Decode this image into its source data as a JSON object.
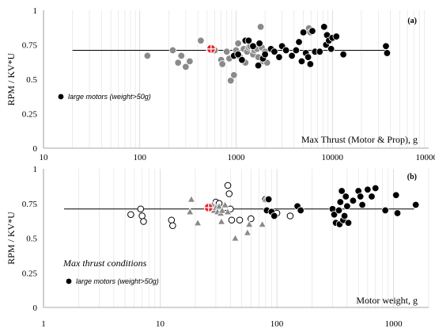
{
  "chart_data": [
    {
      "type": "scatter",
      "panel_label": "(a)",
      "xlabel": "Max Thrust (Motor & Prop), g",
      "ylabel": "RPM / KV*U",
      "xscale": "log",
      "xlim": [
        10,
        100000
      ],
      "ylim": [
        0,
        1
      ],
      "x_ticks": [
        "10",
        "100",
        "1000",
        "10000",
        "100000"
      ],
      "y_ticks": [
        "0",
        "0.25",
        "0.5",
        "0.75",
        "1"
      ],
      "grid": "vertical minor log gridlines",
      "legend_placement": "bottom-left",
      "reference_line": {
        "x": [
          20,
          38000
        ],
        "y": 0.71
      },
      "highlight_point": {
        "x": 550,
        "y": 0.72
      },
      "series": [
        {
          "name": "",
          "style": "gray",
          "points": [
            [
              120,
              0.67
            ],
            [
              220,
              0.71
            ],
            [
              250,
              0.62
            ],
            [
              270,
              0.67
            ],
            [
              300,
              0.59
            ],
            [
              330,
              0.63
            ],
            [
              430,
              0.78
            ],
            [
              530,
              0.72
            ],
            [
              600,
              0.71
            ],
            [
              700,
              0.64
            ],
            [
              720,
              0.61
            ],
            [
              800,
              0.7
            ],
            [
              850,
              0.65
            ],
            [
              880,
              0.49
            ],
            [
              950,
              0.53
            ],
            [
              1000,
              0.71
            ],
            [
              1050,
              0.76
            ],
            [
              1100,
              0.66
            ],
            [
              1200,
              0.72
            ],
            [
              1250,
              0.62
            ],
            [
              1300,
              0.7
            ],
            [
              1350,
              0.73
            ],
            [
              1400,
              0.74
            ],
            [
              1500,
              0.68
            ],
            [
              1550,
              0.71
            ],
            [
              1650,
              0.72
            ],
            [
              1700,
              0.66
            ],
            [
              1800,
              0.88
            ],
            [
              1850,
              0.73
            ],
            [
              1900,
              0.63
            ],
            [
              2000,
              0.7
            ],
            [
              2100,
              0.62
            ],
            [
              5700,
              0.87
            ],
            [
              5900,
              0.84
            ]
          ]
        },
        {
          "name": "large motors (weight>50g)",
          "style": "black",
          "points": [
            [
              950,
              0.67
            ],
            [
              1050,
              0.68
            ],
            [
              1150,
              0.64
            ],
            [
              1250,
              0.78
            ],
            [
              1350,
              0.78
            ],
            [
              1500,
              0.74
            ],
            [
              1700,
              0.6
            ],
            [
              1750,
              0.76
            ],
            [
              1900,
              0.65
            ],
            [
              2000,
              0.68
            ],
            [
              2300,
              0.72
            ],
            [
              2500,
              0.7
            ],
            [
              2800,
              0.66
            ],
            [
              3000,
              0.74
            ],
            [
              3300,
              0.71
            ],
            [
              3800,
              0.67
            ],
            [
              4200,
              0.71
            ],
            [
              4500,
              0.77
            ],
            [
              4800,
              0.63
            ],
            [
              5000,
              0.84
            ],
            [
              5300,
              0.69
            ],
            [
              5600,
              0.66
            ],
            [
              5900,
              0.61
            ],
            [
              6200,
              0.85
            ],
            [
              6600,
              0.7
            ],
            [
              7400,
              0.7
            ],
            [
              8200,
              0.88
            ],
            [
              8600,
              0.75
            ],
            [
              8800,
              0.82
            ],
            [
              9200,
              0.78
            ],
            [
              9700,
              0.72
            ],
            [
              10000,
              0.8
            ],
            [
              11000,
              0.81
            ],
            [
              13000,
              0.68
            ],
            [
              36000,
              0.74
            ],
            [
              37000,
              0.69
            ]
          ]
        }
      ]
    },
    {
      "type": "scatter",
      "panel_label": "(b)",
      "xlabel": "Motor weight, g",
      "ylabel": "RPM / KV*U",
      "xscale": "log",
      "xlim": [
        1,
        2000
      ],
      "ylim": [
        0,
        1
      ],
      "x_ticks": [
        "1",
        "10",
        "100",
        "1000"
      ],
      "y_ticks": [
        "0",
        "0.25",
        "0.5",
        "0.75",
        "1"
      ],
      "grid": "vertical minor log gridlines",
      "legend_placement": "bottom-left",
      "annotation": "Max thrust conditions",
      "reference_line": {
        "x": [
          1.5,
          1500
        ],
        "y": 0.71
      },
      "highlight_point": {
        "x": 26,
        "y": 0.72
      },
      "series": [
        {
          "name": "",
          "style": "open",
          "points": [
            [
              5.6,
              0.67
            ],
            [
              6.8,
              0.71
            ],
            [
              7.0,
              0.66
            ],
            [
              7.2,
              0.62
            ],
            [
              12.5,
              0.63
            ],
            [
              12.8,
              0.59
            ],
            [
              30,
              0.76
            ],
            [
              32,
              0.75
            ],
            [
              36,
              0.72
            ],
            [
              38,
              0.88
            ],
            [
              39,
              0.82
            ],
            [
              40,
              0.71
            ],
            [
              41,
              0.63
            ],
            [
              48,
              0.63
            ],
            [
              60,
              0.64
            ],
            [
              80,
              0.78
            ],
            [
              100,
              0.68
            ],
            [
              130,
              0.66
            ]
          ]
        },
        {
          "name": "",
          "style": "gray-triangle",
          "points": [
            [
              18,
              0.69
            ],
            [
              18.5,
              0.78
            ],
            [
              21,
              0.61
            ],
            [
              28,
              0.74
            ],
            [
              29,
              0.7
            ],
            [
              30,
              0.72
            ],
            [
              31,
              0.69
            ],
            [
              32,
              0.73
            ],
            [
              33,
              0.68
            ],
            [
              33.5,
              0.62
            ],
            [
              34,
              0.7
            ],
            [
              36,
              0.74
            ],
            [
              38,
              0.69
            ],
            [
              44,
              0.5
            ],
            [
              56,
              0.54
            ],
            [
              58,
              0.6
            ],
            [
              75,
              0.6
            ],
            [
              80,
              0.78
            ]
          ]
        },
        {
          "name": "large motors (weight>50g)",
          "style": "black",
          "points": [
            [
              82,
              0.7
            ],
            [
              85,
              0.78
            ],
            [
              90,
              0.69
            ],
            [
              95,
              0.66
            ],
            [
              150,
              0.73
            ],
            [
              160,
              0.7
            ],
            [
              300,
              0.71
            ],
            [
              310,
              0.67
            ],
            [
              320,
              0.61
            ],
            [
              340,
              0.7
            ],
            [
              345,
              0.6
            ],
            [
              350,
              0.76
            ],
            [
              360,
              0.84
            ],
            [
              370,
              0.63
            ],
            [
              380,
              0.66
            ],
            [
              390,
              0.8
            ],
            [
              400,
              0.73
            ],
            [
              410,
              0.61
            ],
            [
              450,
              0.77
            ],
            [
              500,
              0.84
            ],
            [
              520,
              0.8
            ],
            [
              540,
              0.74
            ],
            [
              600,
              0.85
            ],
            [
              650,
              0.8
            ],
            [
              700,
              0.86
            ],
            [
              850,
              0.7
            ],
            [
              1050,
              0.81
            ],
            [
              1080,
              0.68
            ],
            [
              1550,
              0.74
            ]
          ]
        }
      ]
    }
  ]
}
